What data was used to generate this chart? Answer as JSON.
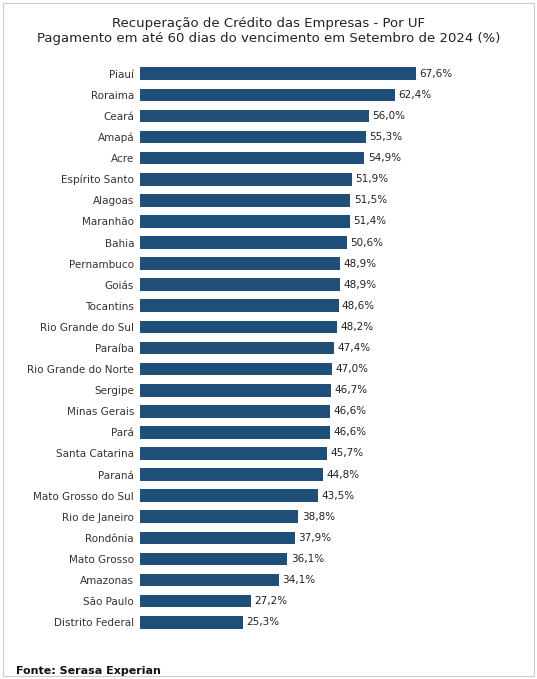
{
  "title_line1": "Recuperação de Crédito das Empresas - Por UF",
  "title_line2": "Pagamento em até 60 dias do vencimento em Setembro de 2024 (%)",
  "fonte": "Fonte: Serasa Experian",
  "categories": [
    "Piauí",
    "Roraima",
    "Ceará",
    "Amapá",
    "Acre",
    "Espírito Santo",
    "Alagoas",
    "Maranhão",
    "Bahia",
    "Pernambuco",
    "Goiás",
    "Tocantins",
    "Rio Grande do Sul",
    "Paraíba",
    "Rio Grande do Norte",
    "Sergipe",
    "Minas Gerais",
    "Pará",
    "Santa Catarina",
    "Paraná",
    "Mato Grosso do Sul",
    "Rio de Janeiro",
    "Rondônia",
    "Mato Grosso",
    "Amazonas",
    "São Paulo",
    "Distrito Federal"
  ],
  "values": [
    67.6,
    62.4,
    56.0,
    55.3,
    54.9,
    51.9,
    51.5,
    51.4,
    50.6,
    48.9,
    48.9,
    48.6,
    48.2,
    47.4,
    47.0,
    46.7,
    46.6,
    46.6,
    45.7,
    44.8,
    43.5,
    38.8,
    37.9,
    36.1,
    34.1,
    27.2,
    25.3
  ],
  "labels": [
    "67,6%",
    "62,4%",
    "56,0%",
    "55,3%",
    "54,9%",
    "51,9%",
    "51,5%",
    "51,4%",
    "50,6%",
    "48,9%",
    "48,9%",
    "48,6%",
    "48,2%",
    "47,4%",
    "47,0%",
    "46,7%",
    "46,6%",
    "46,6%",
    "45,7%",
    "44,8%",
    "43,5%",
    "38,8%",
    "37,9%",
    "36,1%",
    "34,1%",
    "27,2%",
    "25,3%"
  ],
  "bar_color": "#1F4E79",
  "background_color": "#ffffff",
  "title_fontsize": 9.5,
  "label_fontsize": 7.5,
  "tick_fontsize": 7.5,
  "fonte_fontsize": 8,
  "xlim": [
    0,
    80
  ],
  "bar_height": 0.6
}
